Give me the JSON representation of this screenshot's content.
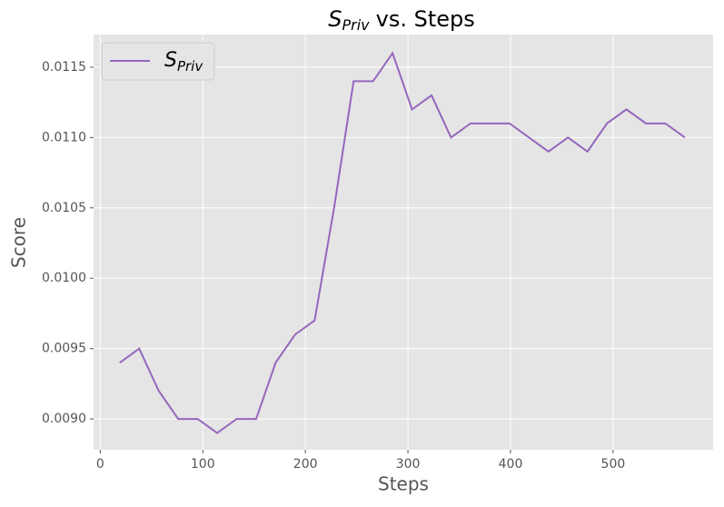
{
  "chart_data": {
    "type": "line",
    "title": {
      "symbol": "S",
      "subscript": "Priv",
      "text": "vs. Steps"
    },
    "x_label": "Steps",
    "y_label": "Score",
    "x": [
      19,
      38,
      57,
      76,
      95,
      114,
      133,
      152,
      171,
      190,
      209,
      228,
      247,
      266,
      285,
      304,
      323,
      342,
      361,
      380,
      399,
      418,
      437,
      456,
      475,
      494,
      513,
      532,
      551,
      570
    ],
    "series": [
      {
        "name": {
          "symbol": "S",
          "subscript": "Priv"
        },
        "color": "#9467bd",
        "values": [
          0.0094,
          0.0095,
          0.0092,
          0.009,
          0.009,
          0.0089,
          0.009,
          0.009,
          0.0094,
          0.0096,
          0.0097,
          0.0105,
          0.0114,
          0.0114,
          0.0116,
          0.0112,
          0.0113,
          0.011,
          0.0111,
          0.0111,
          0.0111,
          0.011,
          0.0109,
          0.011,
          0.0109,
          0.0111,
          0.0112,
          0.0111,
          0.0111,
          0.011
        ]
      }
    ],
    "xlim": [
      -6.5,
      597.5
    ],
    "ylim": [
      0.008781,
      0.011732
    ],
    "xticks": [
      0,
      100,
      200,
      300,
      400,
      500
    ],
    "yticks": [
      {
        "value": 0.009,
        "label": "0.0090"
      },
      {
        "value": 0.0095,
        "label": "0.0095"
      },
      {
        "value": 0.01,
        "label": "0.0100"
      },
      {
        "value": 0.0105,
        "label": "0.0105"
      },
      {
        "value": 0.011,
        "label": "0.0110"
      },
      {
        "value": 0.0115,
        "label": "0.0115"
      }
    ],
    "grid": true,
    "legend": "upper left"
  }
}
